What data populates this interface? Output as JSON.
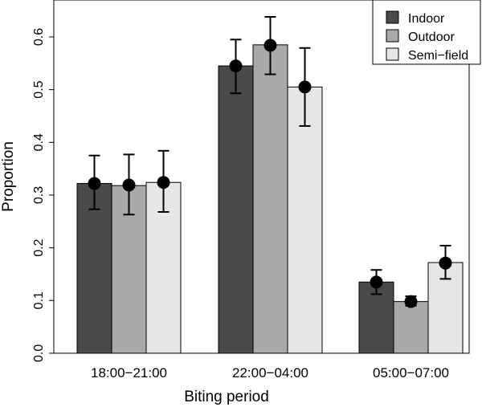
{
  "chart_data": {
    "type": "bar",
    "categories": [
      "18:00−21:00",
      "22:00−04:00",
      "05:00−07:00"
    ],
    "series": [
      {
        "name": "Indoor",
        "color": "#4a4a4a",
        "values": [
          0.322,
          0.545,
          0.135
        ],
        "point": [
          0.322,
          0.545,
          0.135
        ],
        "err_low": [
          0.273,
          0.493,
          0.112
        ],
        "err_high": [
          0.375,
          0.595,
          0.158
        ]
      },
      {
        "name": "Outdoor",
        "color": "#a9a9a9",
        "values": [
          0.318,
          0.585,
          0.098
        ],
        "point": [
          0.319,
          0.584,
          0.098
        ],
        "err_low": [
          0.263,
          0.529,
          0.09
        ],
        "err_high": [
          0.377,
          0.638,
          0.108
        ]
      },
      {
        "name": "Semi−field",
        "color": "#e6e6e6",
        "values": [
          0.324,
          0.505,
          0.172
        ],
        "point": [
          0.324,
          0.505,
          0.171
        ],
        "err_low": [
          0.268,
          0.431,
          0.141
        ],
        "err_high": [
          0.384,
          0.579,
          0.204
        ]
      }
    ],
    "title": "",
    "xlabel": "Biting period",
    "ylabel": "Proportion",
    "ylim": [
      0,
      0.65
    ],
    "yticks": [
      "0.0",
      "0.1",
      "0.2",
      "0.3",
      "0.4",
      "0.5",
      "0.6"
    ],
    "grid": false,
    "legend_position": "top-right"
  }
}
